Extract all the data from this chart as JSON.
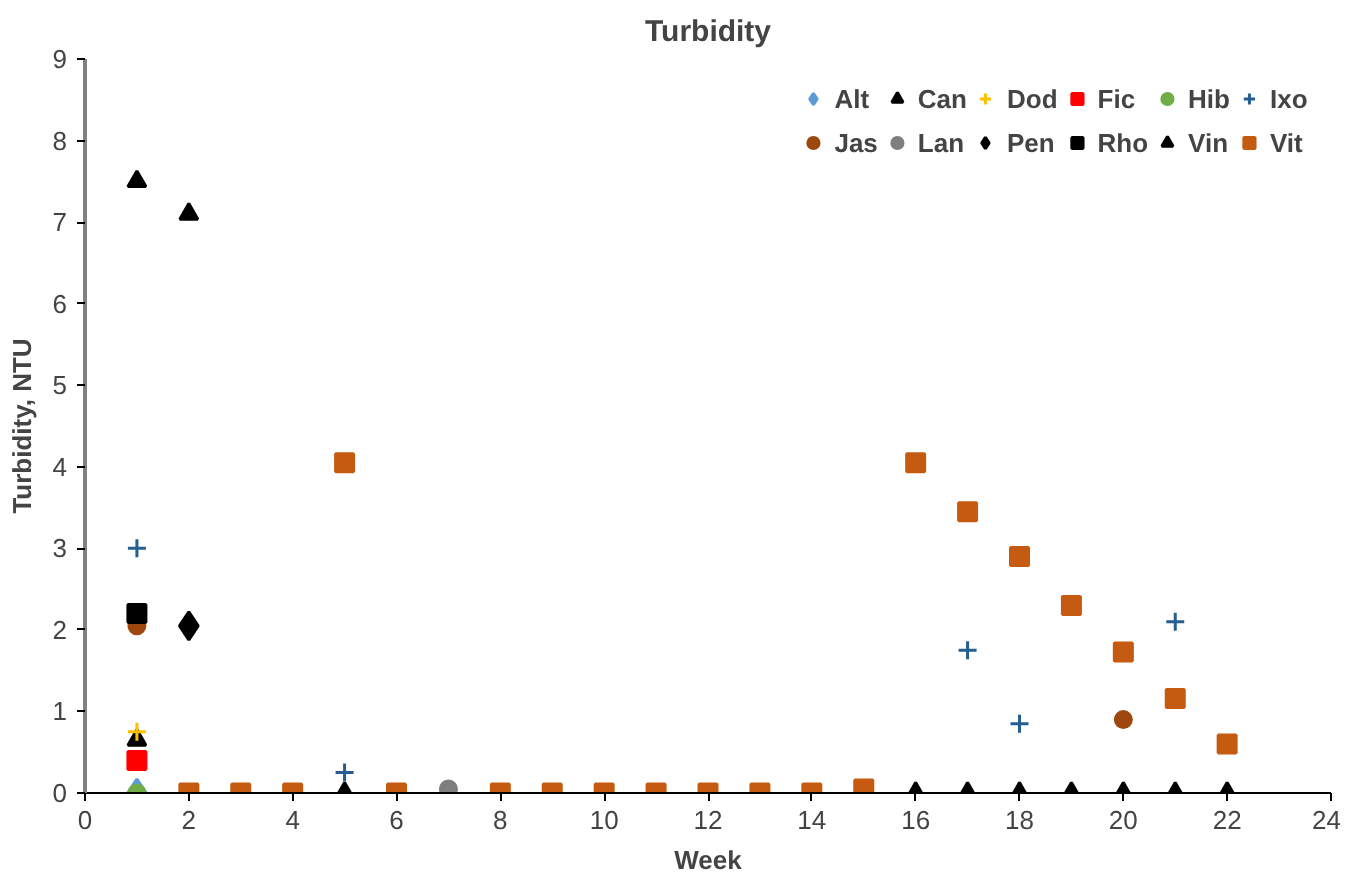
{
  "chart_data": {
    "type": "scatter",
    "title": "Turbidity",
    "xlabel": "Week",
    "ylabel": "Turbidity, NTU",
    "x": [
      1,
      2,
      3,
      4,
      5,
      6,
      7,
      8,
      9,
      10,
      11,
      12,
      13,
      14,
      15,
      16,
      17,
      18,
      19,
      20,
      21,
      22
    ],
    "xlim": [
      0,
      24
    ],
    "xticks": [
      0,
      2,
      4,
      6,
      8,
      10,
      12,
      14,
      16,
      18,
      20,
      22,
      24
    ],
    "ylim": [
      0,
      9
    ],
    "yticks": [
      0,
      1,
      2,
      3,
      4,
      5,
      6,
      7,
      8,
      9
    ],
    "grid": false,
    "legend": "top right",
    "series": [
      {
        "name": "Alt",
        "color": "#5b9bd5",
        "marker": "diamond",
        "values": [
          0,
          null,
          null,
          null,
          null,
          null,
          null,
          null,
          null,
          null,
          null,
          null,
          null,
          null,
          null,
          null,
          null,
          null,
          null,
          null,
          null,
          null
        ]
      },
      {
        "name": "Can",
        "color": "#000000",
        "marker": "triangle",
        "values": [
          0.65,
          null,
          null,
          null,
          null,
          null,
          null,
          null,
          null,
          null,
          null,
          null,
          null,
          null,
          null,
          null,
          null,
          null,
          null,
          null,
          null,
          null
        ]
      },
      {
        "name": "Dod",
        "color": "#ffc000",
        "marker": "cross",
        "values": [
          0.75,
          null,
          null,
          null,
          null,
          null,
          null,
          null,
          null,
          null,
          null,
          null,
          null,
          null,
          null,
          null,
          null,
          null,
          null,
          null,
          null,
          null
        ]
      },
      {
        "name": "Fic",
        "color": "#ff0000",
        "marker": "square",
        "values": [
          0.4,
          null,
          null,
          null,
          null,
          null,
          null,
          null,
          null,
          null,
          null,
          null,
          null,
          null,
          null,
          null,
          null,
          null,
          null,
          null,
          null,
          null
        ]
      },
      {
        "name": "Hib",
        "color": "#70ad47",
        "marker": "circle",
        "values": [
          0,
          null,
          null,
          null,
          null,
          null,
          null,
          null,
          null,
          null,
          null,
          null,
          null,
          null,
          null,
          null,
          null,
          null,
          null,
          null,
          null,
          null
        ]
      },
      {
        "name": "Ixo",
        "color": "#255e91",
        "marker": "cross",
        "values": [
          3.0,
          null,
          null,
          null,
          0.25,
          null,
          null,
          null,
          null,
          null,
          null,
          null,
          null,
          null,
          null,
          null,
          1.75,
          0.85,
          null,
          null,
          2.1,
          null
        ]
      },
      {
        "name": "Jas",
        "color": "#9e480e",
        "marker": "circle",
        "values": [
          2.05,
          null,
          null,
          null,
          null,
          null,
          null,
          null,
          null,
          null,
          null,
          null,
          null,
          null,
          null,
          null,
          null,
          null,
          null,
          0.9,
          null,
          null
        ]
      },
      {
        "name": "Lan",
        "color": "#7f7f7f",
        "values": [
          null,
          null,
          null,
          null,
          null,
          null,
          0.05,
          null,
          null,
          null,
          null,
          null,
          null,
          null,
          null,
          null,
          null,
          null,
          null,
          null,
          null,
          null
        ]
      },
      {
        "name": "Pen",
        "color": "#000000",
        "marker": "diamond",
        "values": [
          null,
          2.05,
          null,
          null,
          null,
          null,
          null,
          null,
          null,
          null,
          null,
          null,
          null,
          null,
          null,
          null,
          null,
          null,
          null,
          null,
          null,
          null
        ]
      },
      {
        "name": "Rho",
        "color": "#000000",
        "marker": "square",
        "values": [
          2.2,
          null,
          null,
          null,
          null,
          null,
          null,
          null,
          null,
          null,
          null,
          null,
          null,
          null,
          null,
          null,
          null,
          null,
          null,
          null,
          null,
          null
        ]
      },
      {
        "name": "Vin",
        "color": "#000000",
        "marker": "triangle",
        "values": [
          7.5,
          7.1,
          null,
          null,
          0,
          null,
          null,
          null,
          null,
          null,
          null,
          null,
          null,
          null,
          null,
          0,
          0,
          0,
          0,
          0,
          0,
          0
        ]
      },
      {
        "name": "Vit",
        "color": "#c55a11",
        "marker": "square",
        "values": [
          null,
          0,
          0,
          0,
          4.05,
          0,
          null,
          0,
          0,
          0,
          0,
          0,
          0,
          0,
          0.05,
          4.05,
          3.45,
          2.9,
          2.3,
          1.73,
          1.16,
          0.6
        ]
      }
    ]
  }
}
